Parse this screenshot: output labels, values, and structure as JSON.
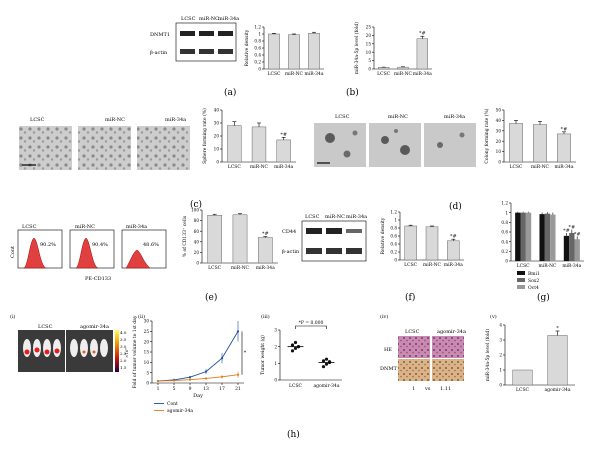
{
  "panel_labels": {
    "a": "(a)",
    "b": "(b)",
    "c": "(c)",
    "d": "(d)",
    "e": "(e)",
    "f": "(f)",
    "g": "(g)",
    "h": "(h)"
  },
  "groups": {
    "lcsc": "LCSC",
    "mirnc": "miR-NC",
    "mir34a": "miR-34a",
    "agomir": "agomir-34a"
  },
  "blot_a": {
    "row1": "DNMT1",
    "row2": "β-actin"
  },
  "blot_f": {
    "row1": "CD44",
    "row2": "β-actin"
  },
  "flow": {
    "xlabel": "PE-CD133",
    "ylabel": "Cont",
    "pct": [
      "90.2%",
      "90.4%",
      "48.6%"
    ]
  },
  "sub_h": {
    "i": "(i)",
    "ii": "(ii)",
    "iii": "(iii)",
    "iv": "(iv)",
    "v": "(v)"
  },
  "h_iv": {
    "row1": "HE",
    "row2": "DNMT1",
    "x1": "1",
    "vs": "vs",
    "x2": "1.11"
  },
  "h_i": {
    "scale_unit": "×10⁶",
    "ticks": [
      "4.0",
      "3.5",
      "3.0",
      "2.5",
      "2.0",
      "1.5"
    ]
  },
  "h_iii": {
    "annot": "*P = 0.000"
  },
  "sig": {
    "star_hash": "*#",
    "star": "*"
  },
  "chart_data": [
    {
      "id": "a",
      "type": "bar",
      "ylabel": "Relative density",
      "categories": [
        "LCSC",
        "miR-NC",
        "miR-34a"
      ],
      "values": [
        1.0,
        0.98,
        1.02
      ],
      "errors": [
        0.02,
        0.02,
        0.03
      ],
      "ylim": [
        0,
        1.2
      ],
      "yticks": [
        "0",
        "0.2",
        "0.4",
        "0.6",
        "0.8",
        "1",
        "1.2"
      ]
    },
    {
      "id": "b",
      "type": "bar",
      "ylabel": "miR-34a-5p level (fold)",
      "categories": [
        "LCSC",
        "miR-NC",
        "miR-34a"
      ],
      "values": [
        1.0,
        1.1,
        18.0
      ],
      "errors": [
        0.1,
        0.2,
        1.5
      ],
      "ylim": [
        0,
        25
      ],
      "yticks": [
        "0",
        "5",
        "10",
        "15",
        "20",
        "25"
      ]
    },
    {
      "id": "c",
      "type": "bar",
      "ylabel": "Sphere forming rate (%)",
      "categories": [
        "LCSC",
        "miR-NC",
        "miR-34a"
      ],
      "values": [
        28,
        27,
        17
      ],
      "errors": [
        3,
        3,
        2
      ],
      "ylim": [
        0,
        40
      ],
      "yticks": [
        "0",
        "10",
        "20",
        "30",
        "40"
      ]
    },
    {
      "id": "d",
      "type": "bar",
      "ylabel": "Colony forming rate (%)",
      "categories": [
        "LCSC",
        "miR-NC",
        "miR-34a"
      ],
      "values": [
        37,
        36,
        27
      ],
      "errors": [
        3,
        3,
        2
      ],
      "ylim": [
        0,
        50
      ],
      "yticks": [
        "0",
        "10",
        "20",
        "30",
        "40",
        "50"
      ]
    },
    {
      "id": "e",
      "type": "bar",
      "ylabel": "% of CD133⁺ cells",
      "categories": [
        "LCSC",
        "miR-NC",
        "miR-34a"
      ],
      "values": [
        90,
        91,
        48
      ],
      "errors": [
        2,
        2,
        2
      ],
      "ylim": [
        0,
        100
      ],
      "yticks": [
        "0",
        "20",
        "40",
        "60",
        "80",
        "100"
      ]
    },
    {
      "id": "f",
      "type": "bar",
      "ylabel": "Relative density",
      "categories": [
        "LCSC",
        "miR-NC",
        "miR-34a"
      ],
      "values": [
        0.85,
        0.83,
        0.48
      ],
      "errors": [
        0.02,
        0.02,
        0.04
      ],
      "ylim": [
        0,
        1.2
      ],
      "yticks": [
        "0",
        "0.2",
        "0.4",
        "0.6",
        "0.8",
        "1",
        "1.2"
      ]
    },
    {
      "id": "g",
      "type": "bar",
      "categories": [
        "LCSC",
        "miR-NC",
        "miR-34a"
      ],
      "series": [
        {
          "name": "Bmi1",
          "color": "#111111",
          "values": [
            1.0,
            0.97,
            0.52
          ],
          "errors": [
            0.02,
            0.03,
            0.06
          ]
        },
        {
          "name": "Sox2",
          "color": "#666666",
          "values": [
            1.0,
            0.98,
            0.58
          ],
          "errors": [
            0.02,
            0.03,
            0.07
          ]
        },
        {
          "name": "Oct4",
          "color": "#999999",
          "values": [
            1.0,
            0.96,
            0.45
          ],
          "errors": [
            0.02,
            0.04,
            0.06
          ]
        }
      ],
      "ylim": [
        0,
        1.2
      ],
      "yticks": [
        "0",
        "0.2",
        "0.4",
        "0.6",
        "0.8",
        "1",
        "1.2"
      ]
    },
    {
      "id": "h_ii",
      "type": "line",
      "xlabel": "Day",
      "ylabel": "Fold of tumor volume to 1st day",
      "x": [
        1,
        5,
        9,
        13,
        17,
        21
      ],
      "ylim": [
        0,
        30
      ],
      "yticks": [
        "0",
        "5",
        "10",
        "15",
        "20",
        "25",
        "30"
      ],
      "series": [
        {
          "name": "Cont",
          "color": "#1f4fa0",
          "values": [
            1,
            1.5,
            2.8,
            5.5,
            12,
            25
          ],
          "errors": [
            0,
            0.3,
            0.6,
            1.2,
            2.5,
            5
          ]
        },
        {
          "name": "agomir-34a",
          "color": "#e07a1a",
          "values": [
            1,
            1.2,
            1.6,
            2.2,
            3,
            4
          ],
          "errors": [
            0,
            0.2,
            0.3,
            0.5,
            0.8,
            1.5
          ]
        }
      ]
    },
    {
      "id": "h_iii",
      "type": "scatter",
      "ylabel": "Tumor weight (g)",
      "categories": [
        "LCSC",
        "agomir-34a"
      ],
      "points": [
        [
          1.75,
          1.9,
          2.0,
          2.1,
          2.25,
          2.0
        ],
        [
          0.8,
          0.95,
          1.05,
          1.15,
          1.25,
          1.1
        ]
      ],
      "means": [
        2.0,
        1.05
      ],
      "ylim": [
        0,
        3
      ],
      "yticks": [
        "0",
        "1",
        "2",
        "3"
      ]
    },
    {
      "id": "h_v",
      "type": "bar",
      "ylabel": "miR-34a-5p level (fold)",
      "categories": [
        "LCSC",
        "agomir-34a"
      ],
      "values": [
        1.0,
        3.3
      ],
      "errors": [
        0,
        0.3
      ],
      "ylim": [
        0,
        4
      ],
      "yticks": [
        "0",
        "1",
        "2",
        "3",
        "4"
      ]
    }
  ]
}
